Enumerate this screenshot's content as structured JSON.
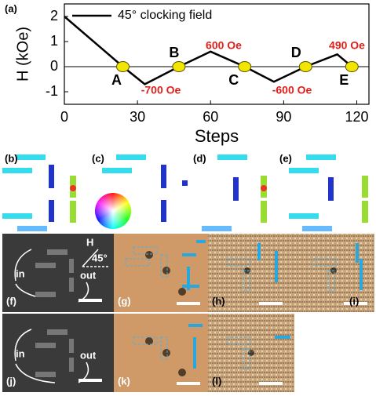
{
  "chart_data": {
    "type": "line",
    "panel_label": "(a)",
    "xlabel": "Steps",
    "ylabel": "H (kOe)",
    "x": [
      0,
      24,
      33,
      47,
      60,
      74,
      86,
      99,
      112,
      118
    ],
    "series": [
      {
        "name": "45° clocking field",
        "color": "#000000",
        "values": [
          2,
          0,
          -0.7,
          0,
          0.6,
          0,
          -0.6,
          0,
          0.49,
          0
        ]
      }
    ],
    "points": {
      "labels": [
        "A",
        "B",
        "C",
        "D",
        "E"
      ],
      "x": [
        24,
        47,
        74,
        99,
        118
      ],
      "y": [
        0,
        0,
        0,
        0,
        0
      ],
      "color": "#f2e600"
    },
    "annotations": [
      "-700 Oe",
      "600 Oe",
      "-600 Oe",
      "490 Oe"
    ],
    "annotation_color": "#e0201b",
    "xlim": [
      0,
      125
    ],
    "ylim": [
      -1.5,
      2.5
    ],
    "xticks": [
      0,
      30,
      60,
      90,
      120
    ],
    "yticks": [
      -1,
      0,
      1,
      2
    ]
  },
  "panels": {
    "b": "(b)",
    "c": "(c)",
    "d": "(d)",
    "e": "(e)",
    "f": {
      "label": "(f)",
      "field": "H",
      "angle": "45°",
      "in": "in",
      "out": "out"
    },
    "g": "(g)",
    "h": "(h)",
    "i": "(i)",
    "j": {
      "label": "(j)",
      "in": "in",
      "out": "out"
    },
    "k": "(k)",
    "l": "(l)"
  }
}
